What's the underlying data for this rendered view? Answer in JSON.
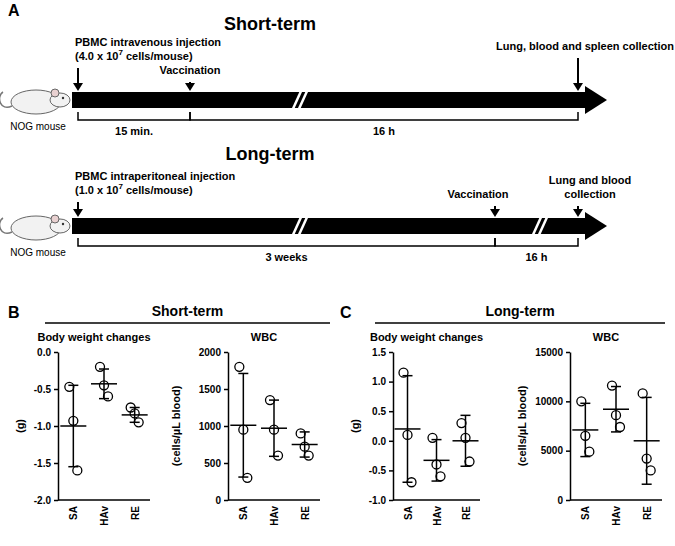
{
  "diagram": {
    "label": "A",
    "short_term": {
      "title": "Short-term",
      "mouse": "NOG mouse",
      "events": [
        {
          "lines": [
            "PBMC intravenous injection"
          ],
          "dose": {
            "prefix": "(4.0 x 10",
            "exponent": "7",
            "suffix": " cells/mouse)"
          }
        },
        {
          "lines": [
            "Vaccination"
          ]
        },
        {
          "lines": [
            "Lung, blood and spleen collection"
          ]
        }
      ],
      "intervals": [
        "15 min.",
        "16 h"
      ]
    },
    "long_term": {
      "title": "Long-term",
      "mouse": "NOG mouse",
      "events": [
        {
          "lines": [
            "PBMC intraperitoneal injection"
          ],
          "dose": {
            "prefix": "(1.0 x 10",
            "exponent": "7",
            "suffix": " cells/mouse)"
          }
        },
        {
          "lines": [
            "Vaccination"
          ]
        },
        {
          "lines": [
            "Lung and blood",
            "collection"
          ]
        }
      ],
      "intervals": [
        "3 weeks",
        "16 h"
      ]
    }
  },
  "panels": [
    {
      "label": "B",
      "title": "Short-term"
    },
    {
      "label": "C",
      "title": "Long-term"
    }
  ],
  "chart_data": [
    {
      "type": "dot",
      "title": "Body weight changes",
      "ylabel": "(g)",
      "color": "#000000",
      "categories": [
        "SA",
        "HAv",
        "RE"
      ],
      "points": [
        [
          -0.47,
          -0.93,
          -1.6
        ],
        [
          -0.2,
          -0.45,
          -0.6
        ],
        [
          -0.75,
          -0.83,
          -0.95
        ]
      ],
      "means": [
        -1.0,
        -0.43,
        -0.85
      ],
      "errors": [
        0.55,
        0.2,
        0.1
      ],
      "ylim": [
        -2.0,
        0.0
      ],
      "yticks": [
        {
          "value": -2.0,
          "label": "-2.0"
        },
        {
          "value": -1.5,
          "label": "-1.5"
        },
        {
          "value": -1.0,
          "label": "-1.0"
        },
        {
          "value": -0.5,
          "label": "-0.5"
        },
        {
          "value": 0.0,
          "label": "0.0"
        }
      ]
    },
    {
      "type": "dot",
      "title": "WBC",
      "ylabel": "(cells/µL blood)",
      "color": "#000000",
      "categories": [
        "SA",
        "HAv",
        "RE"
      ],
      "points": [
        [
          1800,
          950,
          300
        ],
        [
          1350,
          950,
          600
        ],
        [
          900,
          720,
          600
        ]
      ],
      "means": [
        1010,
        970,
        750
      ],
      "errors": [
        700,
        380,
        170
      ],
      "ylim": [
        0,
        2000
      ],
      "yticks": [
        0,
        500,
        1000,
        1500,
        2000
      ]
    },
    {
      "type": "dot",
      "title": "Body weight changes",
      "ylabel": "(g)",
      "color": "#000000",
      "categories": [
        "SA",
        "HAv",
        "RE"
      ],
      "points": [
        [
          1.15,
          0.1,
          -0.7
        ],
        [
          0.05,
          -0.4,
          -0.6
        ],
        [
          0.3,
          0.05,
          -0.35
        ]
      ],
      "means": [
        0.2,
        -0.33,
        0.0
      ],
      "errors": [
        0.9,
        0.35,
        0.43
      ],
      "ylim": [
        -1.0,
        1.5
      ],
      "yticks": [
        {
          "value": -1.0,
          "label": "-1.0"
        },
        {
          "value": -0.5,
          "label": "-0.5"
        },
        {
          "value": 0.0,
          "label": "0.0"
        },
        {
          "value": 0.5,
          "label": "0.5"
        },
        {
          "value": 1.0,
          "label": "1.0"
        },
        {
          "value": 1.5,
          "label": "1.5"
        }
      ]
    },
    {
      "type": "dot",
      "title": "WBC",
      "ylabel": "(cells/µL blood)",
      "color": "#000000",
      "categories": [
        "SA",
        "HAv",
        "RE"
      ],
      "points": [
        [
          10000,
          6500,
          4900
        ],
        [
          11600,
          8600,
          7400
        ],
        [
          10800,
          4200,
          3000
        ]
      ],
      "means": [
        7100,
        9200,
        6000
      ],
      "errors": [
        2700,
        2300,
        4400
      ],
      "ylim": [
        0,
        15000
      ],
      "yticks": [
        0,
        5000,
        10000,
        15000
      ]
    }
  ]
}
